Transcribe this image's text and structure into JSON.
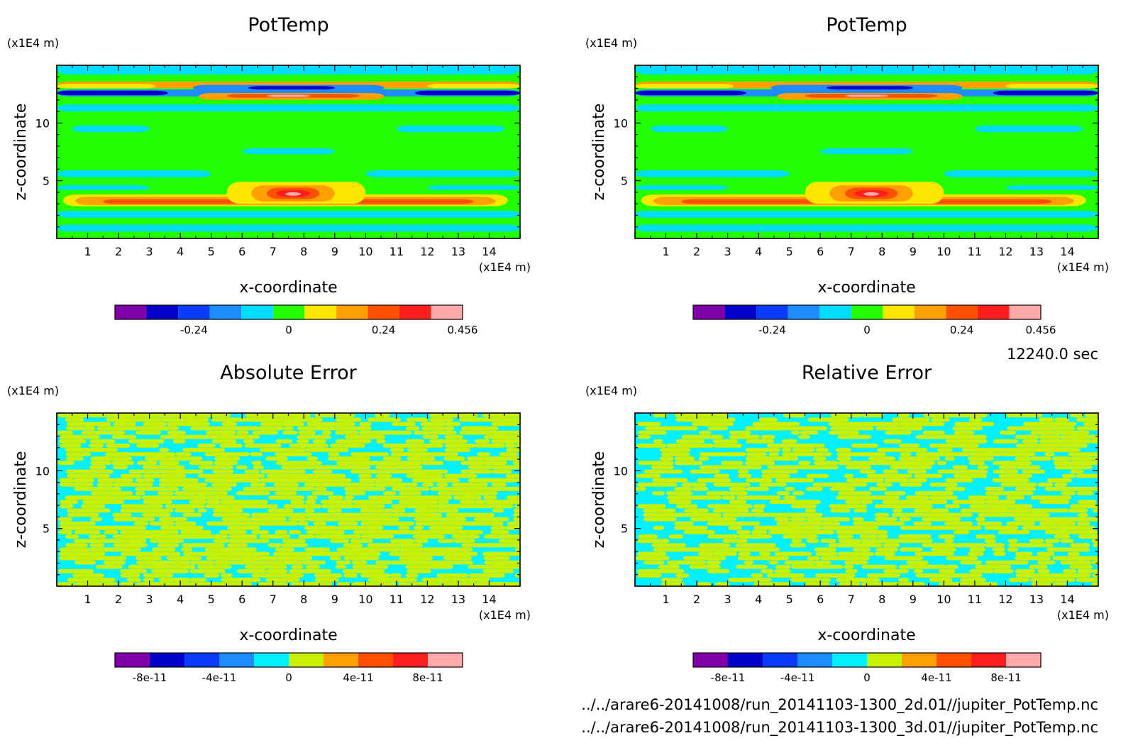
{
  "time_label": "12240.0 sec",
  "file_paths": [
    "../../arare6-20141008/run_20141103-1300_2d.01//jupiter_PotTemp.nc",
    "../../arare6-20141008/run_20141103-1300_3d.01//jupiter_PotTemp.nc"
  ],
  "chart_data": [
    {
      "type": "heatmap",
      "title": "PotTemp",
      "xlabel": "x-coordinate",
      "ylabel": "z-coordinate",
      "x_unit": "(x1E4 m)",
      "y_unit": "(x1E4 m)",
      "xlim": [
        0,
        15
      ],
      "ylim": [
        0,
        15
      ],
      "x_ticks": [
        "1",
        "2",
        "3",
        "4",
        "5",
        "6",
        "7",
        "8",
        "9",
        "10",
        "11",
        "12",
        "13",
        "14"
      ],
      "y_ticks": [
        "5",
        "10"
      ],
      "colorbar": {
        "colors": [
          "#7f00a8",
          "#0000c8",
          "#0a3cff",
          "#1e8cff",
          "#00dcff",
          "#24ff00",
          "#ffe600",
          "#ffa000",
          "#ff5000",
          "#ff1e1e",
          "#ffaaaa"
        ],
        "labels": [
          "-0.24",
          "0",
          "0.24",
          "0.456"
        ]
      }
    },
    {
      "type": "heatmap",
      "title": "PotTemp",
      "xlabel": "x-coordinate",
      "ylabel": "z-coordinate",
      "x_unit": "(x1E4 m)",
      "y_unit": "(x1E4 m)",
      "xlim": [
        0,
        15
      ],
      "ylim": [
        0,
        15
      ],
      "x_ticks": [
        "1",
        "2",
        "3",
        "4",
        "5",
        "6",
        "7",
        "8",
        "9",
        "10",
        "11",
        "12",
        "13",
        "14"
      ],
      "y_ticks": [
        "5",
        "10"
      ],
      "colorbar": {
        "colors": [
          "#7f00a8",
          "#0000c8",
          "#0a3cff",
          "#1e8cff",
          "#00dcff",
          "#24ff00",
          "#ffe600",
          "#ffa000",
          "#ff5000",
          "#ff1e1e",
          "#ffaaaa"
        ],
        "labels": [
          "-0.24",
          "0",
          "0.24",
          "0.456"
        ]
      }
    },
    {
      "type": "heatmap",
      "title": "Absolute Error",
      "xlabel": "x-coordinate",
      "ylabel": "z-coordinate",
      "x_unit": "(x1E4 m)",
      "y_unit": "(x1E4 m)",
      "xlim": [
        0,
        15
      ],
      "ylim": [
        0,
        15
      ],
      "x_ticks": [
        "1",
        "2",
        "3",
        "4",
        "5",
        "6",
        "7",
        "8",
        "9",
        "10",
        "11",
        "12",
        "13",
        "14"
      ],
      "y_ticks": [
        "5",
        "10"
      ],
      "colorbar": {
        "colors": [
          "#7f00a8",
          "#0000c8",
          "#0a3cff",
          "#1e8cff",
          "#00f0ff",
          "#c8f000",
          "#ffa000",
          "#ff5000",
          "#ff1e1e",
          "#ffaaaa"
        ],
        "labels": [
          "-8e-11",
          "-4e-11",
          "0",
          "4e-11",
          "8e-11"
        ]
      }
    },
    {
      "type": "heatmap",
      "title": "Relative Error",
      "xlabel": "x-coordinate",
      "ylabel": "z-coordinate",
      "x_unit": "(x1E4 m)",
      "y_unit": "(x1E4 m)",
      "xlim": [
        0,
        15
      ],
      "ylim": [
        0,
        15
      ],
      "x_ticks": [
        "1",
        "2",
        "3",
        "4",
        "5",
        "6",
        "7",
        "8",
        "9",
        "10",
        "11",
        "12",
        "13",
        "14"
      ],
      "y_ticks": [
        "5",
        "10"
      ],
      "colorbar": {
        "colors": [
          "#7f00a8",
          "#0000c8",
          "#0a3cff",
          "#1e8cff",
          "#00f0ff",
          "#c8f000",
          "#ffa000",
          "#ff5000",
          "#ff1e1e",
          "#ffaaaa"
        ],
        "labels": [
          "-8e-11",
          "-4e-11",
          "0",
          "4e-11",
          "8e-11"
        ]
      }
    }
  ]
}
